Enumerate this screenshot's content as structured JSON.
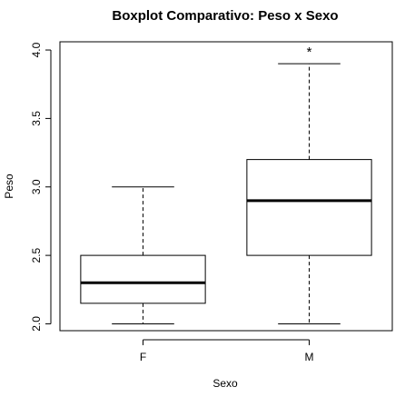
{
  "chart_data": {
    "type": "boxplot",
    "title": "Boxplot Comparativo: Peso x Sexo",
    "xlabel": "Sexo",
    "ylabel": "Peso",
    "ylim": [
      1.95,
      4.06
    ],
    "yticks": [
      2.0,
      2.5,
      3.0,
      3.5,
      4.0
    ],
    "ytick_labels": [
      "2.0",
      "2.5",
      "3.0",
      "3.5",
      "4.0"
    ],
    "categories": [
      "F",
      "M"
    ],
    "boxes": [
      {
        "category": "F",
        "whisker_low": 2.0,
        "q1": 2.15,
        "median": 2.3,
        "q3": 2.5,
        "whisker_high": 3.0,
        "outliers": []
      },
      {
        "category": "M",
        "whisker_low": 2.0,
        "q1": 2.5,
        "median": 2.9,
        "q3": 3.2,
        "whisker_high": 3.9,
        "outliers": [
          4.0
        ]
      }
    ],
    "outlier_marker": "*",
    "grid": false,
    "legend": "none"
  }
}
